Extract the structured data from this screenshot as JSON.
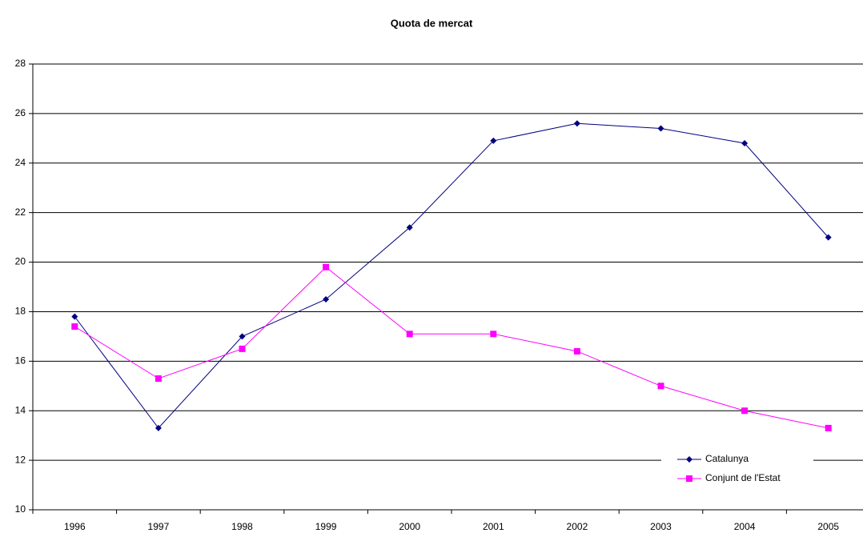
{
  "chart_data": {
    "type": "line",
    "title": "Quota de mercat",
    "categories": [
      "1996",
      "1997",
      "1998",
      "1999",
      "2000",
      "2001",
      "2002",
      "2003",
      "2004",
      "2005"
    ],
    "series": [
      {
        "name": "Catalunya",
        "color": "#000080",
        "marker": "diamond",
        "values": [
          17.8,
          13.3,
          17.0,
          18.5,
          21.4,
          24.9,
          25.6,
          25.4,
          24.8,
          21.0
        ]
      },
      {
        "name": "Conjunt de l'Estat",
        "color": "#ff00ff",
        "marker": "square",
        "values": [
          17.4,
          15.3,
          16.5,
          19.8,
          17.1,
          17.1,
          16.4,
          15.0,
          14.0,
          13.3
        ]
      }
    ],
    "ylim": [
      10,
      28
    ],
    "yticks": [
      10,
      12,
      14,
      16,
      18,
      20,
      22,
      24,
      26,
      28
    ],
    "grid": true,
    "legend": "lower right"
  }
}
